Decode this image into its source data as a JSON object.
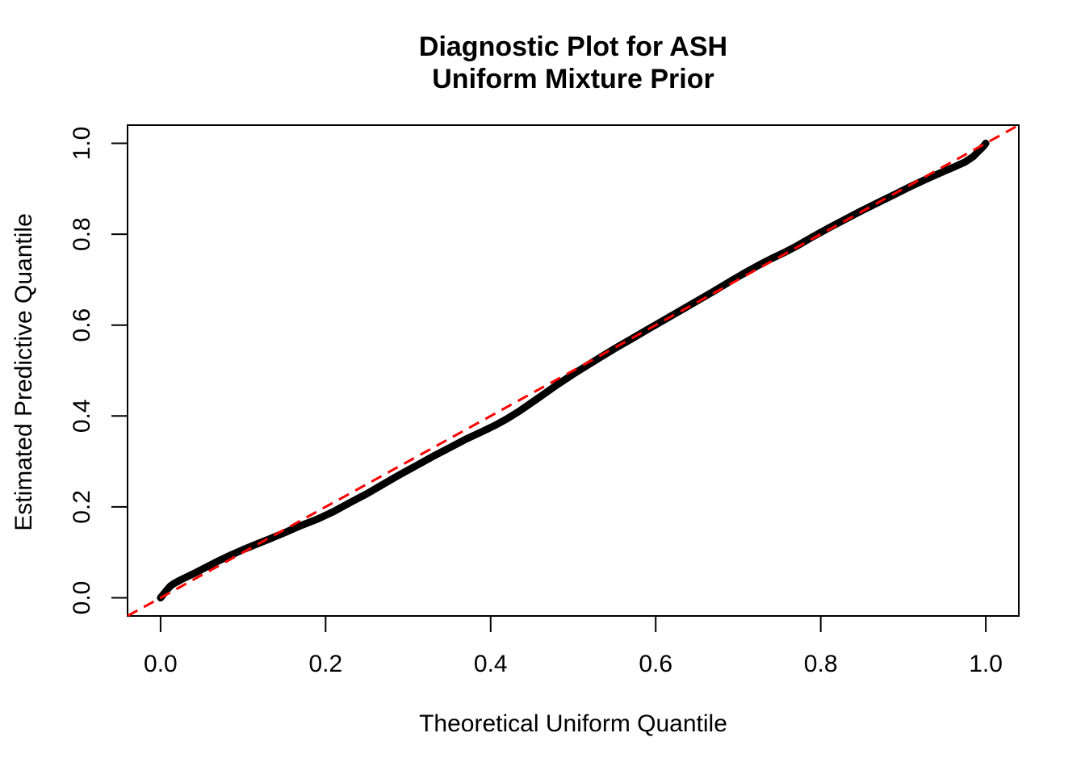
{
  "title": {
    "line1": "Diagnostic Plot for ASH",
    "line2": "Uniform Mixture Prior"
  },
  "colors": {
    "points": "#000000",
    "reference_line": "#FF0000",
    "background": "#FFFFFF"
  },
  "chart_data": {
    "type": "scatter",
    "title": "Diagnostic Plot for ASH\nUniform Mixture Prior",
    "xlabel": "Theoretical Uniform Quantile",
    "ylabel": "Estimated Predictive Quantile",
    "xlim": [
      -0.04,
      1.04
    ],
    "ylim": [
      -0.04,
      1.04
    ],
    "grid": false,
    "legend": null,
    "x_ticks": [
      0.0,
      0.2,
      0.4,
      0.6,
      0.8,
      1.0
    ],
    "x_tick_labels": [
      "0.0",
      "0.2",
      "0.4",
      "0.6",
      "0.8",
      "1.0"
    ],
    "y_ticks": [
      0.0,
      0.2,
      0.4,
      0.6,
      0.8,
      1.0
    ],
    "y_tick_labels": [
      "0.0",
      "0.2",
      "0.4",
      "0.6",
      "0.8",
      "1.0"
    ],
    "series": [
      {
        "name": "estimated-vs-theoretical-quantiles",
        "style": "thick-point-line",
        "color": "#000000",
        "points": [
          [
            0.0,
            0.0
          ],
          [
            0.004,
            0.009
          ],
          [
            0.008,
            0.018
          ],
          [
            0.012,
            0.026
          ],
          [
            0.016,
            0.031
          ],
          [
            0.025,
            0.04
          ],
          [
            0.04,
            0.053
          ],
          [
            0.055,
            0.067
          ],
          [
            0.07,
            0.081
          ],
          [
            0.085,
            0.094
          ],
          [
            0.1,
            0.106
          ],
          [
            0.115,
            0.117
          ],
          [
            0.13,
            0.128
          ],
          [
            0.15,
            0.143
          ],
          [
            0.17,
            0.159
          ],
          [
            0.19,
            0.173
          ],
          [
            0.21,
            0.19
          ],
          [
            0.23,
            0.21
          ],
          [
            0.25,
            0.229
          ],
          [
            0.27,
            0.25
          ],
          [
            0.29,
            0.271
          ],
          [
            0.31,
            0.291
          ],
          [
            0.33,
            0.311
          ],
          [
            0.35,
            0.33
          ],
          [
            0.37,
            0.349
          ],
          [
            0.39,
            0.366
          ],
          [
            0.405,
            0.379
          ],
          [
            0.42,
            0.394
          ],
          [
            0.435,
            0.411
          ],
          [
            0.455,
            0.436
          ],
          [
            0.48,
            0.468
          ],
          [
            0.5,
            0.492
          ],
          [
            0.515,
            0.509
          ],
          [
            0.53,
            0.526
          ],
          [
            0.55,
            0.548
          ],
          [
            0.57,
            0.569
          ],
          [
            0.59,
            0.59
          ],
          [
            0.61,
            0.611
          ],
          [
            0.63,
            0.632
          ],
          [
            0.65,
            0.653
          ],
          [
            0.67,
            0.674
          ],
          [
            0.69,
            0.696
          ],
          [
            0.71,
            0.717
          ],
          [
            0.725,
            0.732
          ],
          [
            0.74,
            0.746
          ],
          [
            0.755,
            0.759
          ],
          [
            0.77,
            0.773
          ],
          [
            0.79,
            0.794
          ],
          [
            0.81,
            0.814
          ],
          [
            0.83,
            0.833
          ],
          [
            0.85,
            0.852
          ],
          [
            0.87,
            0.87
          ],
          [
            0.89,
            0.888
          ],
          [
            0.91,
            0.906
          ],
          [
            0.93,
            0.923
          ],
          [
            0.95,
            0.939
          ],
          [
            0.963,
            0.949
          ],
          [
            0.975,
            0.959
          ],
          [
            0.985,
            0.971
          ],
          [
            0.992,
            0.984
          ],
          [
            0.997,
            0.993
          ],
          [
            1.0,
            1.0
          ]
        ]
      },
      {
        "name": "identity-reference-line",
        "style": "dashed-line",
        "color": "#FF0000",
        "points": [
          [
            -0.04,
            -0.04
          ],
          [
            1.04,
            1.04
          ]
        ]
      }
    ]
  }
}
